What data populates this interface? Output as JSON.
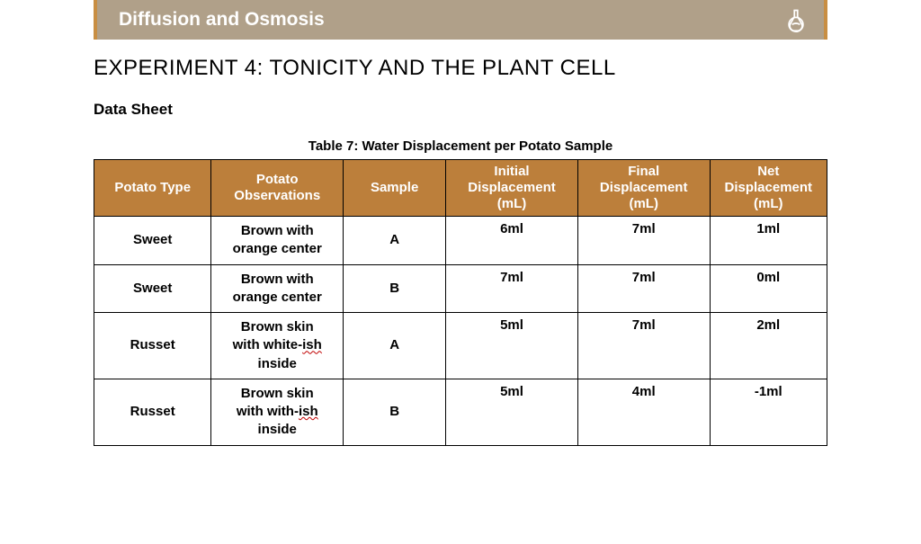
{
  "banner": {
    "title": "Diffusion and Osmosis",
    "bg_color": "#b0a089",
    "accent_color": "#c88e43",
    "icon_name": "flask-icon"
  },
  "experiment_title": "EXPERIMENT 4: TONICITY AND THE PLANT CELL",
  "data_sheet_label": "Data Sheet",
  "table": {
    "caption": "Table 7: Water Displacement per Potato Sample",
    "header_bg": "#bc7f3b",
    "header_fg": "#ffffff",
    "border_color": "#000000",
    "columns": [
      {
        "key": "type",
        "label": "Potato Type",
        "width_pct": 16
      },
      {
        "key": "obs",
        "label": "Potato Observations",
        "width_pct": 18
      },
      {
        "key": "sample",
        "label": "Sample",
        "width_pct": 14
      },
      {
        "key": "init",
        "label": "Initial Displacement (mL)",
        "width_pct": 18
      },
      {
        "key": "final",
        "label": "Final Displacement (mL)",
        "width_pct": 18
      },
      {
        "key": "net",
        "label": "Net Displacement (mL)",
        "width_pct": 16
      }
    ],
    "header_lines": {
      "type": [
        "Potato Type"
      ],
      "obs": [
        "Potato",
        "Observations"
      ],
      "sample": [
        "Sample"
      ],
      "init": [
        "Initial",
        "Displacement",
        "(mL)"
      ],
      "final": [
        "Final",
        "Displacement",
        "(mL)"
      ],
      "net": [
        "Net",
        "Displacement",
        "(mL)"
      ]
    },
    "rows": [
      {
        "type": "Sweet",
        "obs_lines": [
          "Brown with",
          "orange center"
        ],
        "sample": "A",
        "init": "6ml",
        "final": "7ml",
        "net": "1ml",
        "obs_squiggle_word": null
      },
      {
        "type": "Sweet",
        "obs_lines": [
          "Brown with",
          "orange center"
        ],
        "sample": "B",
        "init": "7ml",
        "final": "7ml",
        "net": "0ml",
        "obs_squiggle_word": null
      },
      {
        "type": "Russet",
        "obs_lines": [
          "Brown skin",
          "with white-ish",
          "inside"
        ],
        "sample": "A",
        "init": "5ml",
        "final": "7ml",
        "net": "2ml",
        "obs_squiggle_word": "ish"
      },
      {
        "type": "Russet",
        "obs_lines": [
          "Brown skin",
          "with with-ish",
          "inside"
        ],
        "sample": "B",
        "init": "5ml",
        "final": "4ml",
        "net": "-1ml",
        "obs_squiggle_word": "ish"
      }
    ]
  }
}
